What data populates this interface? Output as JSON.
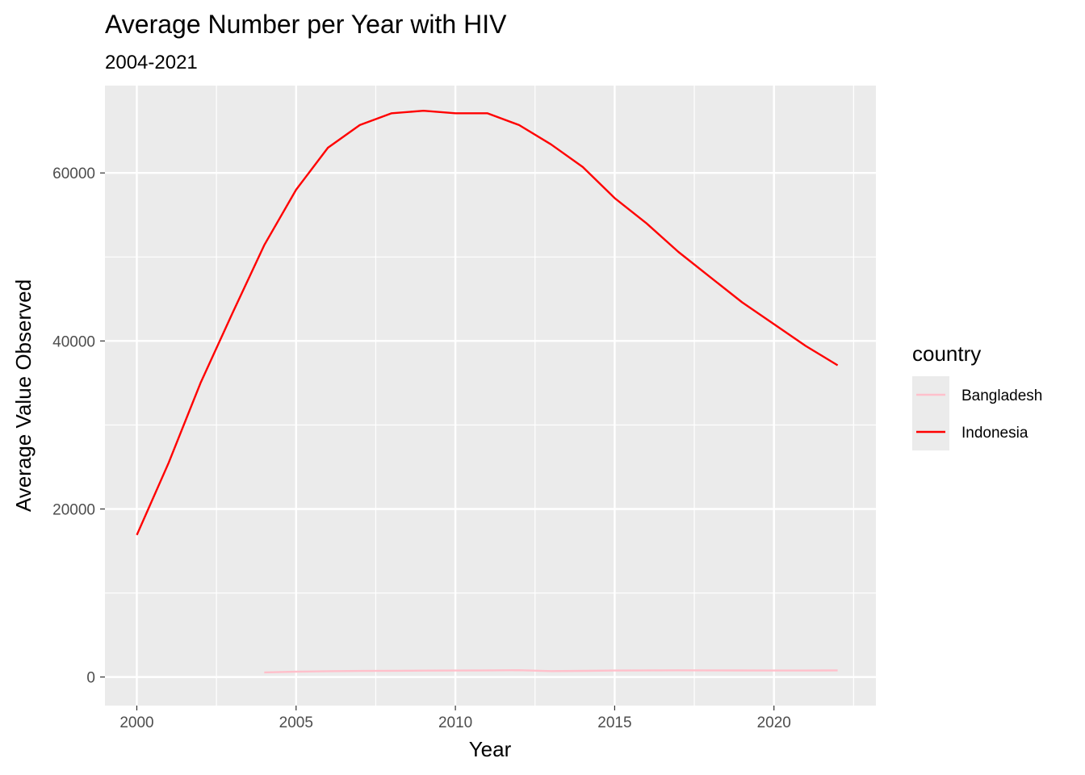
{
  "chart_data": {
    "type": "line",
    "title": "Average Number per Year with HIV",
    "subtitle": "2004-2021",
    "xlabel": "Year",
    "ylabel": "Average Value Observed",
    "xlim": [
      1999.0,
      2023.2
    ],
    "ylim": [
      -3400,
      70400
    ],
    "x_ticks": [
      2000,
      2005,
      2010,
      2015,
      2020
    ],
    "x_tick_labels": [
      "2000",
      "2005",
      "2010",
      "2015",
      "2020"
    ],
    "y_ticks": [
      0,
      20000,
      40000,
      60000
    ],
    "y_tick_labels": [
      "0",
      "20000",
      "40000",
      "60000"
    ],
    "y_minor_ticks": [
      10000,
      30000,
      50000
    ],
    "grid": true,
    "legend": {
      "title": "country",
      "position": "right"
    },
    "series": [
      {
        "name": "Bangladesh",
        "color": "#FFC0CB",
        "x": [
          2004,
          2005,
          2006,
          2007,
          2008,
          2009,
          2010,
          2011,
          2012,
          2013,
          2014,
          2015,
          2016,
          2017,
          2018,
          2019,
          2020,
          2021,
          2022
        ],
        "values": [
          550,
          640,
          690,
          720,
          740,
          760,
          770,
          790,
          810,
          700,
          730,
          770,
          790,
          800,
          790,
          780,
          770,
          770,
          790
        ]
      },
      {
        "name": "Indonesia",
        "color": "#FF0000",
        "x": [
          2000,
          2001,
          2002,
          2003,
          2004,
          2005,
          2006,
          2007,
          2008,
          2009,
          2010,
          2011,
          2012,
          2013,
          2014,
          2015,
          2016,
          2017,
          2018,
          2019,
          2020,
          2021,
          2022
        ],
        "values": [
          16900,
          25500,
          35000,
          43300,
          51400,
          58000,
          63000,
          65700,
          67100,
          67400,
          67100,
          67100,
          65700,
          63400,
          60700,
          57000,
          54000,
          50600,
          47600,
          44600,
          42000,
          39400,
          37100
        ]
      }
    ]
  }
}
